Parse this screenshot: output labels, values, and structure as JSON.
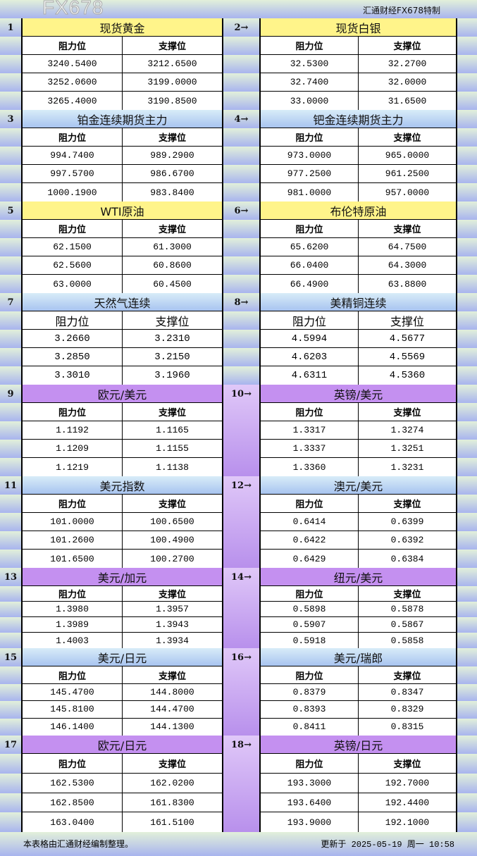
{
  "header": {
    "brand": "汇通财经FX678特制"
  },
  "colors": {
    "yellow": "#fff48a",
    "blue": "#b8d8f4",
    "purple": "#c490f0"
  },
  "col_headers": {
    "resistance": "阻力位",
    "support": "支撑位"
  },
  "blocks": [
    {
      "left": {
        "num": "1",
        "title": "现货黄金",
        "rows": [
          [
            "3240.5400",
            "3212.6500"
          ],
          [
            "3252.0600",
            "3199.0000"
          ],
          [
            "3265.4000",
            "3190.8500"
          ]
        ]
      },
      "right": {
        "num": "2→",
        "title": "现货白银",
        "rows": [
          [
            "32.5300",
            "32.2700"
          ],
          [
            "32.7400",
            "32.0000"
          ],
          [
            "33.0000",
            "31.6500"
          ]
        ]
      },
      "color": "yellow"
    },
    {
      "left": {
        "num": "3",
        "title": "铂金连续期货主力",
        "rows": [
          [
            "994.7400",
            "989.2900"
          ],
          [
            "997.5700",
            "986.6700"
          ],
          [
            "1000.1900",
            "983.8400"
          ]
        ]
      },
      "right": {
        "num": "4→",
        "title": "钯金连续期货主力",
        "rows": [
          [
            "973.0000",
            "965.0000"
          ],
          [
            "977.2500",
            "961.2500"
          ],
          [
            "981.0000",
            "957.0000"
          ]
        ]
      },
      "color": "blue"
    },
    {
      "left": {
        "num": "5",
        "title": "WTI原油",
        "rows": [
          [
            "62.1500",
            "61.3000"
          ],
          [
            "62.5600",
            "60.8600"
          ],
          [
            "63.0000",
            "60.4500"
          ]
        ]
      },
      "right": {
        "num": "6→",
        "title": "布伦特原油",
        "rows": [
          [
            "65.6200",
            "64.7500"
          ],
          [
            "66.0400",
            "64.3000"
          ],
          [
            "66.4900",
            "63.8800"
          ]
        ]
      },
      "color": "yellow"
    },
    {
      "left": {
        "num": "7",
        "title": "天然气连续",
        "rows": [
          [
            "3.2660",
            "3.2310"
          ],
          [
            "3.2850",
            "3.2150"
          ],
          [
            "3.3010",
            "3.1960"
          ]
        ]
      },
      "right": {
        "num": "8→",
        "title": "美精铜连续",
        "rows": [
          [
            "4.5994",
            "4.5677"
          ],
          [
            "4.6203",
            "4.5569"
          ],
          [
            "4.6311",
            "4.5360"
          ]
        ]
      },
      "color": "blue"
    },
    {
      "left": {
        "num": "9",
        "title": "欧元/美元",
        "rows": [
          [
            "1.1192",
            "1.1165"
          ],
          [
            "1.1209",
            "1.1155"
          ],
          [
            "1.1219",
            "1.1138"
          ]
        ]
      },
      "right": {
        "num": "10→",
        "title": "英镑/美元",
        "rows": [
          [
            "1.3317",
            "1.3274"
          ],
          [
            "1.3337",
            "1.3251"
          ],
          [
            "1.3360",
            "1.3231"
          ]
        ]
      },
      "color": "purple"
    },
    {
      "left": {
        "num": "11",
        "title": "美元指数",
        "rows": [
          [
            "101.0000",
            "100.6500"
          ],
          [
            "101.2600",
            "100.4900"
          ],
          [
            "101.6500",
            "100.2700"
          ]
        ]
      },
      "right": {
        "num": "12→",
        "title": "澳元/美元",
        "rows": [
          [
            "0.6414",
            "0.6399"
          ],
          [
            "0.6422",
            "0.6392"
          ],
          [
            "0.6429",
            "0.6384"
          ]
        ]
      },
      "color": "blue"
    },
    {
      "left": {
        "num": "13",
        "title": "美元/加元",
        "rows": [
          [
            "1.3980",
            "1.3957"
          ],
          [
            "1.3989",
            "1.3943"
          ],
          [
            "1.4003",
            "1.3934"
          ]
        ]
      },
      "right": {
        "num": "14→",
        "title": "纽元/美元",
        "rows": [
          [
            "0.5898",
            "0.5878"
          ],
          [
            "0.5907",
            "0.5867"
          ],
          [
            "0.5918",
            "0.5858"
          ]
        ]
      },
      "color": "purple"
    },
    {
      "left": {
        "num": "15",
        "title": "美元/日元",
        "rows": [
          [
            "145.4700",
            "144.8000"
          ],
          [
            "145.8100",
            "144.4700"
          ],
          [
            "146.1400",
            "144.1300"
          ]
        ]
      },
      "right": {
        "num": "16→",
        "title": "美元/瑞郎",
        "rows": [
          [
            "0.8379",
            "0.8347"
          ],
          [
            "0.8393",
            "0.8329"
          ],
          [
            "0.8411",
            "0.8315"
          ]
        ]
      },
      "color": "blue"
    },
    {
      "left": {
        "num": "17",
        "title": "欧元/日元",
        "rows": [
          [
            "162.5300",
            "162.0200"
          ],
          [
            "162.8500",
            "161.8300"
          ],
          [
            "163.0400",
            "161.5100"
          ]
        ]
      },
      "right": {
        "num": "18→",
        "title": "英镑/日元",
        "rows": [
          [
            "193.3000",
            "192.7000"
          ],
          [
            "193.6400",
            "192.4400"
          ],
          [
            "193.9000",
            "192.1000"
          ]
        ]
      },
      "color": "purple"
    }
  ],
  "footer": {
    "note": "本表格由汇通财经编制整理。",
    "updated": "更新于 2025-05-19 周一 10:58"
  },
  "watermark": "FX678"
}
